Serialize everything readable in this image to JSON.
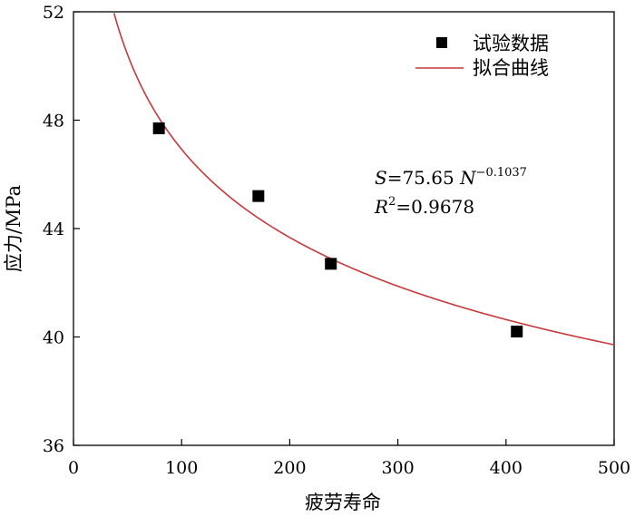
{
  "chart_data": {
    "type": "scatter",
    "xlabel": "疲劳寿命",
    "ylabel": "应力/MPa",
    "xlim": [
      0,
      500
    ],
    "ylim": [
      36,
      52
    ],
    "xticks": [
      0,
      100,
      200,
      300,
      400,
      500
    ],
    "yticks": [
      36,
      40,
      44,
      48,
      52
    ],
    "grid": false,
    "legend": "top-right",
    "series": [
      {
        "name": "试验数据",
        "type": "scatter",
        "marker": "square",
        "color": "#000000",
        "x": [
          79,
          171,
          238,
          410
        ],
        "y": [
          47.7,
          45.2,
          42.7,
          40.2
        ]
      },
      {
        "name": "拟合曲线",
        "type": "line",
        "color": "#c8383a",
        "function": "S = 75.65 * N^-0.1037"
      }
    ],
    "annotation": {
      "line1": {
        "var": "S",
        "eq": "=75.65 ",
        "var2": "N",
        "exp": "−0.1037"
      },
      "line2": {
        "var": "R",
        "exp": "2",
        "eq": "=0.9678"
      }
    }
  }
}
